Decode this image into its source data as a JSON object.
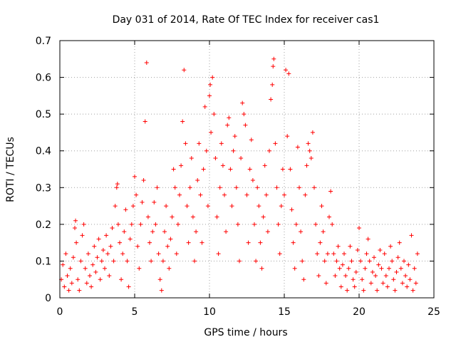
{
  "chart_data": {
    "type": "scatter",
    "title": "Day 031 of 2014, Rate Of TEC Index for receiver cas1",
    "xlabel": "GPS time / hours",
    "ylabel": "ROTI / TECUs",
    "xlim": [
      0,
      25
    ],
    "ylim": [
      0,
      0.7
    ],
    "x_ticks": [
      0,
      5,
      10,
      15,
      20,
      25
    ],
    "x_tick_labels": [
      "0",
      "5",
      "10",
      "15",
      "20",
      "25"
    ],
    "y_ticks": [
      0,
      0.1,
      0.2,
      0.3,
      0.4,
      0.5,
      0.6,
      0.7
    ],
    "y_tick_labels": [
      "0",
      "0.1",
      "0.2",
      "0.3",
      "0.4",
      "0.5",
      "0.6",
      "0.7"
    ],
    "grid": true,
    "marker": "plus",
    "color": "#ff0000",
    "series": [
      {
        "name": "ROTI",
        "points": [
          [
            0.1,
            0.05
          ],
          [
            0.2,
            0.09
          ],
          [
            0.3,
            0.03
          ],
          [
            0.4,
            0.12
          ],
          [
            0.5,
            0.06
          ],
          [
            0.6,
            0.02
          ],
          [
            0.7,
            0.08
          ],
          [
            0.8,
            0.04
          ],
          [
            0.9,
            0.11
          ],
          [
            1.0,
            0.19
          ],
          [
            1.05,
            0.21
          ],
          [
            1.1,
            0.15
          ],
          [
            1.2,
            0.05
          ],
          [
            1.3,
            0.02
          ],
          [
            1.4,
            0.1
          ],
          [
            1.5,
            0.17
          ],
          [
            1.6,
            0.2
          ],
          [
            1.7,
            0.08
          ],
          [
            1.8,
            0.04
          ],
          [
            1.9,
            0.12
          ],
          [
            2.0,
            0.06
          ],
          [
            2.1,
            0.03
          ],
          [
            2.2,
            0.09
          ],
          [
            2.3,
            0.14
          ],
          [
            2.4,
            0.07
          ],
          [
            2.5,
            0.11
          ],
          [
            2.6,
            0.16
          ],
          [
            2.7,
            0.05
          ],
          [
            2.8,
            0.1
          ],
          [
            2.9,
            0.13
          ],
          [
            3.0,
            0.08
          ],
          [
            3.1,
            0.17
          ],
          [
            3.2,
            0.12
          ],
          [
            3.3,
            0.06
          ],
          [
            3.4,
            0.14
          ],
          [
            3.5,
            0.19
          ],
          [
            3.6,
            0.1
          ],
          [
            3.7,
            0.25
          ],
          [
            3.8,
            0.3
          ],
          [
            3.85,
            0.31
          ],
          [
            3.9,
            0.2
          ],
          [
            4.0,
            0.15
          ],
          [
            4.1,
            0.05
          ],
          [
            4.2,
            0.12
          ],
          [
            4.3,
            0.18
          ],
          [
            4.4,
            0.24
          ],
          [
            4.5,
            0.1
          ],
          [
            4.6,
            0.03
          ],
          [
            4.7,
            0.16
          ],
          [
            4.8,
            0.2
          ],
          [
            4.9,
            0.25
          ],
          [
            5.0,
            0.33
          ],
          [
            5.1,
            0.28
          ],
          [
            5.2,
            0.14
          ],
          [
            5.3,
            0.08
          ],
          [
            5.4,
            0.2
          ],
          [
            5.5,
            0.26
          ],
          [
            5.6,
            0.32
          ],
          [
            5.7,
            0.48
          ],
          [
            5.8,
            0.64
          ],
          [
            5.9,
            0.22
          ],
          [
            6.0,
            0.15
          ],
          [
            6.1,
            0.1
          ],
          [
            6.2,
            0.18
          ],
          [
            6.3,
            0.26
          ],
          [
            6.4,
            0.2
          ],
          [
            6.5,
            0.3
          ],
          [
            6.6,
            0.12
          ],
          [
            6.7,
            0.05
          ],
          [
            6.8,
            0.02
          ],
          [
            6.9,
            0.1
          ],
          [
            7.0,
            0.18
          ],
          [
            7.1,
            0.25
          ],
          [
            7.2,
            0.14
          ],
          [
            7.3,
            0.08
          ],
          [
            7.4,
            0.16
          ],
          [
            7.5,
            0.22
          ],
          [
            7.6,
            0.35
          ],
          [
            7.7,
            0.3
          ],
          [
            7.8,
            0.12
          ],
          [
            7.9,
            0.2
          ],
          [
            8.0,
            0.28
          ],
          [
            8.1,
            0.36
          ],
          [
            8.2,
            0.48
          ],
          [
            8.3,
            0.62
          ],
          [
            8.4,
            0.42
          ],
          [
            8.5,
            0.25
          ],
          [
            8.6,
            0.15
          ],
          [
            8.7,
            0.3
          ],
          [
            8.8,
            0.38
          ],
          [
            8.9,
            0.22
          ],
          [
            9.0,
            0.1
          ],
          [
            9.1,
            0.18
          ],
          [
            9.2,
            0.32
          ],
          [
            9.3,
            0.42
          ],
          [
            9.4,
            0.28
          ],
          [
            9.5,
            0.15
          ],
          [
            9.6,
            0.35
          ],
          [
            9.7,
            0.52
          ],
          [
            9.8,
            0.4
          ],
          [
            9.9,
            0.25
          ],
          [
            10.0,
            0.55
          ],
          [
            10.05,
            0.58
          ],
          [
            10.1,
            0.45
          ],
          [
            10.2,
            0.6
          ],
          [
            10.3,
            0.5
          ],
          [
            10.4,
            0.38
          ],
          [
            10.5,
            0.22
          ],
          [
            10.6,
            0.12
          ],
          [
            10.7,
            0.3
          ],
          [
            10.8,
            0.42
          ],
          [
            10.9,
            0.36
          ],
          [
            11.0,
            0.28
          ],
          [
            11.1,
            0.18
          ],
          [
            11.2,
            0.47
          ],
          [
            11.3,
            0.49
          ],
          [
            11.4,
            0.35
          ],
          [
            11.5,
            0.25
          ],
          [
            11.6,
            0.4
          ],
          [
            11.7,
            0.44
          ],
          [
            11.8,
            0.3
          ],
          [
            11.9,
            0.2
          ],
          [
            12.0,
            0.1
          ],
          [
            12.1,
            0.38
          ],
          [
            12.2,
            0.53
          ],
          [
            12.3,
            0.5
          ],
          [
            12.4,
            0.47
          ],
          [
            12.5,
            0.28
          ],
          [
            12.6,
            0.15
          ],
          [
            12.7,
            0.35
          ],
          [
            12.8,
            0.43
          ],
          [
            12.9,
            0.32
          ],
          [
            13.0,
            0.2
          ],
          [
            13.1,
            0.1
          ],
          [
            13.2,
            0.3
          ],
          [
            13.3,
            0.25
          ],
          [
            13.4,
            0.15
          ],
          [
            13.5,
            0.08
          ],
          [
            13.6,
            0.22
          ],
          [
            13.7,
            0.36
          ],
          [
            13.8,
            0.28
          ],
          [
            13.9,
            0.18
          ],
          [
            14.0,
            0.4
          ],
          [
            14.1,
            0.54
          ],
          [
            14.2,
            0.58
          ],
          [
            14.25,
            0.63
          ],
          [
            14.3,
            0.65
          ],
          [
            14.4,
            0.42
          ],
          [
            14.5,
            0.3
          ],
          [
            14.6,
            0.2
          ],
          [
            14.7,
            0.12
          ],
          [
            14.8,
            0.25
          ],
          [
            14.9,
            0.35
          ],
          [
            15.0,
            0.28
          ],
          [
            15.1,
            0.62
          ],
          [
            15.2,
            0.44
          ],
          [
            15.3,
            0.61
          ],
          [
            15.4,
            0.35
          ],
          [
            15.5,
            0.24
          ],
          [
            15.6,
            0.15
          ],
          [
            15.7,
            0.08
          ],
          [
            15.8,
            0.2
          ],
          [
            15.9,
            0.41
          ],
          [
            16.0,
            0.3
          ],
          [
            16.1,
            0.18
          ],
          [
            16.2,
            0.1
          ],
          [
            16.3,
            0.05
          ],
          [
            16.4,
            0.28
          ],
          [
            16.5,
            0.36
          ],
          [
            16.6,
            0.42
          ],
          [
            16.7,
            0.4
          ],
          [
            16.8,
            0.38
          ],
          [
            16.9,
            0.45
          ],
          [
            17.0,
            0.3
          ],
          [
            17.1,
            0.2
          ],
          [
            17.2,
            0.12
          ],
          [
            17.3,
            0.06
          ],
          [
            17.4,
            0.15
          ],
          [
            17.5,
            0.25
          ],
          [
            17.6,
            0.18
          ],
          [
            17.7,
            0.1
          ],
          [
            17.8,
            0.04
          ],
          [
            17.9,
            0.12
          ],
          [
            18.0,
            0.22
          ],
          [
            18.1,
            0.29
          ],
          [
            18.2,
            0.2
          ],
          [
            18.3,
            0.12
          ],
          [
            18.4,
            0.06
          ],
          [
            18.5,
            0.1
          ],
          [
            18.6,
            0.14
          ],
          [
            18.7,
            0.08
          ],
          [
            18.8,
            0.03
          ],
          [
            18.9,
            0.09
          ],
          [
            19.0,
            0.12
          ],
          [
            19.1,
            0.06
          ],
          [
            19.2,
            0.02
          ],
          [
            19.3,
            0.08
          ],
          [
            19.4,
            0.14
          ],
          [
            19.5,
            0.1
          ],
          [
            19.6,
            0.05
          ],
          [
            19.7,
            0.03
          ],
          [
            19.8,
            0.07
          ],
          [
            19.9,
            0.13
          ],
          [
            20.0,
            0.19
          ],
          [
            20.1,
            0.1
          ],
          [
            20.2,
            0.05
          ],
          [
            20.3,
            0.02
          ],
          [
            20.4,
            0.08
          ],
          [
            20.5,
            0.12
          ],
          [
            20.6,
            0.16
          ],
          [
            20.7,
            0.1
          ],
          [
            20.8,
            0.04
          ],
          [
            20.9,
            0.07
          ],
          [
            21.0,
            0.11
          ],
          [
            21.1,
            0.06
          ],
          [
            21.2,
            0.02
          ],
          [
            21.3,
            0.09
          ],
          [
            21.4,
            0.13
          ],
          [
            21.5,
            0.08
          ],
          [
            21.6,
            0.04
          ],
          [
            21.7,
            0.12
          ],
          [
            21.8,
            0.06
          ],
          [
            21.9,
            0.03
          ],
          [
            22.0,
            0.08
          ],
          [
            22.1,
            0.14
          ],
          [
            22.2,
            0.1
          ],
          [
            22.3,
            0.05
          ],
          [
            22.4,
            0.02
          ],
          [
            22.5,
            0.07
          ],
          [
            22.6,
            0.11
          ],
          [
            22.7,
            0.15
          ],
          [
            22.8,
            0.08
          ],
          [
            22.9,
            0.04
          ],
          [
            23.0,
            0.1
          ],
          [
            23.1,
            0.06
          ],
          [
            23.2,
            0.03
          ],
          [
            23.3,
            0.09
          ],
          [
            23.4,
            0.05
          ],
          [
            23.5,
            0.17
          ],
          [
            23.6,
            0.02
          ],
          [
            23.7,
            0.08
          ],
          [
            23.8,
            0.04
          ],
          [
            23.9,
            0.12
          ]
        ]
      }
    ]
  }
}
